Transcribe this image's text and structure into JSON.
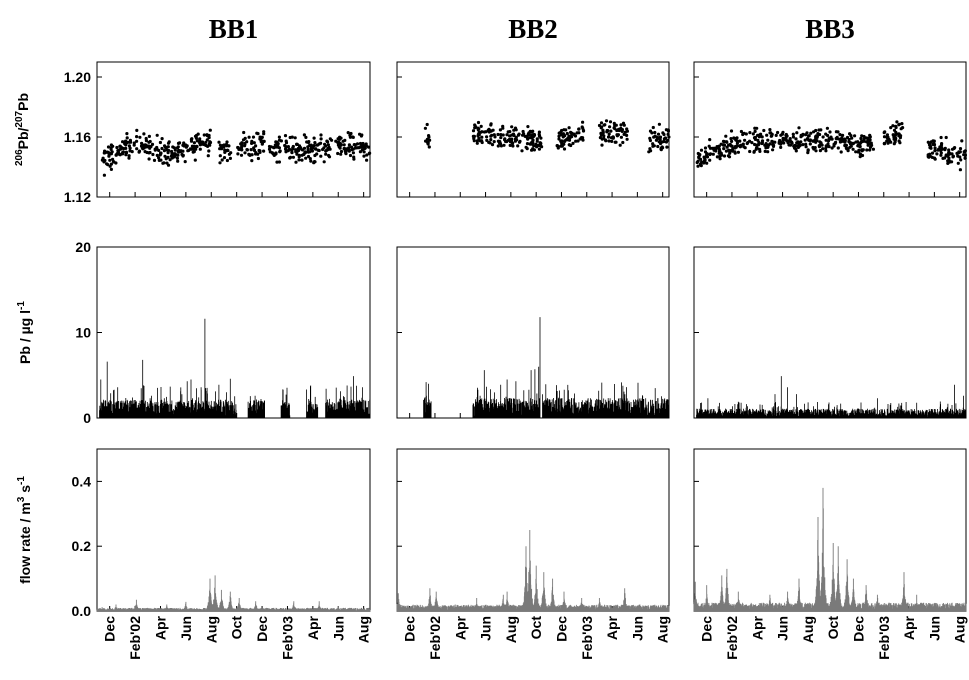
{
  "columns": [
    "BB1",
    "BB2",
    "BB3"
  ],
  "x_tick_labels": [
    "Dec",
    "Feb'02",
    "Apr",
    "Jun",
    "Aug",
    "Oct",
    "Dec",
    "Feb'03",
    "Apr",
    "Jun",
    "Aug"
  ],
  "chart_data": [
    {
      "type": "scatter",
      "name": "206Pb/207Pb",
      "ylabel_parts": {
        "pre1": "206",
        "main1": "Pb/",
        "pre2": "207",
        "main2": "Pb"
      },
      "ylim": [
        1.12,
        1.21
      ],
      "yticks": [
        "1.12",
        "1.16",
        "1.20"
      ],
      "ytick_values": [
        1.12,
        1.16,
        1.2
      ],
      "x_range_months": [
        0,
        21.5
      ],
      "panels": [
        {
          "column": "BB1",
          "segments": [
            [
              0.3,
              3.2,
              1.142,
              1.158
            ],
            [
              3.3,
              6.2,
              1.155,
              1.148
            ],
            [
              6.3,
              9.0,
              1.152,
              1.157
            ],
            [
              9.6,
              10.6,
              1.15,
              1.152
            ],
            [
              11.0,
              13.2,
              1.153,
              1.156
            ],
            [
              13.5,
              18.5,
              1.152,
              1.152
            ],
            [
              18.8,
              21.5,
              1.155,
              1.153
            ]
          ]
        },
        {
          "column": "BB2",
          "segments": [
            [
              2.2,
              2.6,
              1.158,
              1.158
            ],
            [
              6.0,
              11.5,
              1.161,
              1.157
            ],
            [
              12.6,
              14.8,
              1.158,
              1.162
            ],
            [
              16.0,
              18.3,
              1.162,
              1.163
            ],
            [
              19.9,
              21.5,
              1.157,
              1.159
            ]
          ]
        },
        {
          "column": "BB3",
          "segments": [
            [
              0.2,
              2.2,
              1.144,
              1.152
            ],
            [
              2.3,
              6.5,
              1.155,
              1.158
            ],
            [
              6.6,
              14.2,
              1.158,
              1.156
            ],
            [
              15.0,
              16.6,
              1.158,
              1.165
            ],
            [
              18.5,
              21.5,
              1.152,
              1.148
            ]
          ]
        }
      ]
    },
    {
      "type": "bar",
      "name": "Pb",
      "ylabel": "Pb / µg l",
      "ylabel_sup": "-1",
      "ylim": [
        0,
        20
      ],
      "yticks": [
        "0",
        "10",
        "20"
      ],
      "ytick_values": [
        0,
        10,
        20
      ],
      "panels": [
        {
          "column": "BB1",
          "base": 1.2,
          "segments": [
            [
              0.2,
              11.0
            ],
            [
              11.9,
              13.2
            ],
            [
              14.5,
              15.2
            ],
            [
              16.5,
              17.4
            ],
            [
              18.0,
              21.5
            ]
          ],
          "peaks": [
            [
              0.3,
              4.5
            ],
            [
              0.8,
              6.6
            ],
            [
              2.8,
              2.4
            ],
            [
              3.6,
              6.8
            ],
            [
              5.3,
              2.3
            ],
            [
              7.1,
              4.3
            ],
            [
              7.4,
              4.5
            ],
            [
              8.2,
              3.6
            ],
            [
              8.5,
              11.6
            ],
            [
              9.6,
              3.9
            ],
            [
              10.5,
              4.6
            ],
            [
              14.7,
              1.7
            ],
            [
              17.0,
              1.6
            ],
            [
              19.7,
              3.8
            ],
            [
              20.2,
              4.9
            ],
            [
              20.9,
              3.6
            ]
          ]
        },
        {
          "column": "BB2",
          "base": 1.3,
          "segments": [
            [
              2.1,
              2.7
            ],
            [
              6.0,
              11.3
            ],
            [
              11.5,
              21.5
            ]
          ],
          "peaks": [
            [
              2.3,
              4.2
            ],
            [
              2.5,
              4.0
            ],
            [
              6.9,
              5.6
            ],
            [
              7.7,
              3.0
            ],
            [
              8.2,
              3.9
            ],
            [
              8.7,
              4.5
            ],
            [
              9.4,
              4.3
            ],
            [
              10.6,
              5.6
            ],
            [
              10.9,
              5.7
            ],
            [
              11.2,
              6.0
            ],
            [
              11.3,
              11.8
            ],
            [
              13.8,
              0.8
            ],
            [
              15.2,
              0.7
            ],
            [
              17.6,
              0.5
            ],
            [
              19.2,
              0.6
            ],
            [
              21.2,
              0.6
            ]
          ]
        },
        {
          "column": "BB3",
          "base": 0.6,
          "segments": [
            [
              0.2,
              21.5
            ]
          ],
          "peaks": [
            [
              0.6,
              1.8
            ],
            [
              1.1,
              2.3
            ],
            [
              2.5,
              1.1
            ],
            [
              3.6,
              1.0
            ],
            [
              6.4,
              2.8
            ],
            [
              6.9,
              4.9
            ],
            [
              7.4,
              3.6
            ],
            [
              8.1,
              2.8
            ],
            [
              14.5,
              2.3
            ],
            [
              16.1,
              1.3
            ],
            [
              20.6,
              3.9
            ],
            [
              21.3,
              2.6
            ]
          ]
        }
      ]
    },
    {
      "type": "area",
      "name": "flow rate",
      "ylabel_parts": {
        "main1": "flow rate / m",
        "sup1": "3",
        "main2": " s",
        "sup2": "-1"
      },
      "ylim": [
        0,
        0.5
      ],
      "yticks": [
        "0.0",
        "0.2",
        "0.4"
      ],
      "ytick_values": [
        0.0,
        0.2,
        0.4
      ],
      "panels": [
        {
          "column": "BB1",
          "base": 0.006,
          "peaks": [
            [
              0.4,
              0.012
            ],
            [
              1.5,
              0.02
            ],
            [
              3.1,
              0.035
            ],
            [
              5.5,
              0.02
            ],
            [
              7.0,
              0.028
            ],
            [
              8.9,
              0.1
            ],
            [
              9.3,
              0.11
            ],
            [
              9.8,
              0.065
            ],
            [
              10.5,
              0.06
            ],
            [
              11.2,
              0.04
            ],
            [
              12.5,
              0.03
            ],
            [
              15.5,
              0.03
            ],
            [
              17.5,
              0.03
            ],
            [
              19.0,
              0.015
            ]
          ]
        },
        {
          "column": "BB2",
          "base": 0.012,
          "peaks": [
            [
              0.1,
              0.055
            ],
            [
              2.6,
              0.07
            ],
            [
              3.1,
              0.06
            ],
            [
              4.6,
              0.02
            ],
            [
              6.3,
              0.04
            ],
            [
              8.4,
              0.05
            ],
            [
              8.7,
              0.06
            ],
            [
              10.2,
              0.2
            ],
            [
              10.5,
              0.25
            ],
            [
              11.0,
              0.14
            ],
            [
              11.6,
              0.12
            ],
            [
              12.3,
              0.1
            ],
            [
              13.2,
              0.06
            ],
            [
              14.6,
              0.04
            ],
            [
              16.0,
              0.04
            ],
            [
              18.0,
              0.07
            ],
            [
              19.2,
              0.02
            ]
          ]
        },
        {
          "column": "BB3",
          "base": 0.016,
          "peaks": [
            [
              0.1,
              0.09
            ],
            [
              1.0,
              0.08
            ],
            [
              2.2,
              0.11
            ],
            [
              2.6,
              0.13
            ],
            [
              3.5,
              0.06
            ],
            [
              6.0,
              0.05
            ],
            [
              7.4,
              0.06
            ],
            [
              8.3,
              0.1
            ],
            [
              9.8,
              0.29
            ],
            [
              10.2,
              0.38
            ],
            [
              11.0,
              0.21
            ],
            [
              11.4,
              0.2
            ],
            [
              12.1,
              0.16
            ],
            [
              12.6,
              0.1
            ],
            [
              13.6,
              0.08
            ],
            [
              14.5,
              0.05
            ],
            [
              16.6,
              0.12
            ],
            [
              17.6,
              0.05
            ]
          ]
        }
      ]
    }
  ]
}
